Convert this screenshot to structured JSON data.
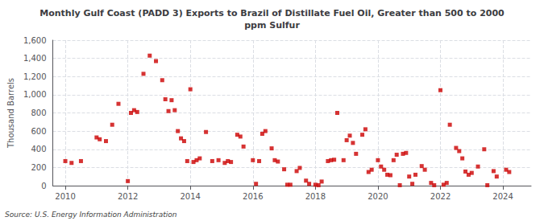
{
  "chart_data": {
    "type": "scatter",
    "title": "Monthly Gulf Coast (PADD 3) Exports to Brazil of Distillate Fuel Oil, Greater than 500 to 2000\nppm Sulfur",
    "ylabel": "Thousand Barrels",
    "annotations": [
      "Source: U.S. Energy Information Administration"
    ],
    "color": "#cc0000",
    "marker": "square",
    "grid": true,
    "xlim": [
      2009.6,
      2024.9
    ],
    "xticks": [
      2010,
      2012,
      2014,
      2016,
      2018,
      2020,
      2022,
      2024
    ],
    "ylim": [
      0,
      1600
    ],
    "yticks": [
      0,
      200,
      400,
      600,
      800,
      {
        "value": 1000,
        "label": "1,000"
      },
      {
        "value": 1200,
        "label": "1,200"
      },
      {
        "value": 1400,
        "label": "1,400"
      },
      {
        "value": 1600,
        "label": "1,600"
      }
    ],
    "x": [
      2010.0,
      2010.2,
      2010.5,
      2011.0,
      2011.1,
      2011.3,
      2011.5,
      2011.7,
      2012.0,
      2012.1,
      2012.2,
      2012.3,
      2012.5,
      2012.7,
      2012.9,
      2013.1,
      2013.2,
      2013.3,
      2013.4,
      2013.5,
      2013.6,
      2013.7,
      2013.8,
      2013.9,
      2014.0,
      2014.1,
      2014.2,
      2014.3,
      2014.5,
      2014.7,
      2014.9,
      2015.1,
      2015.2,
      2015.3,
      2015.5,
      2015.6,
      2015.7,
      2016.0,
      2016.1,
      2016.2,
      2016.3,
      2016.4,
      2016.6,
      2016.7,
      2016.8,
      2017.0,
      2017.1,
      2017.2,
      2017.4,
      2017.5,
      2017.7,
      2017.8,
      2018.0,
      2018.1,
      2018.2,
      2018.4,
      2018.5,
      2018.6,
      2018.7,
      2018.9,
      2019.0,
      2019.1,
      2019.2,
      2019.3,
      2019.5,
      2019.6,
      2019.7,
      2019.8,
      2020.0,
      2020.1,
      2020.2,
      2020.3,
      2020.4,
      2020.5,
      2020.6,
      2020.7,
      2020.8,
      2020.9,
      2021.0,
      2021.1,
      2021.2,
      2021.4,
      2021.5,
      2021.7,
      2021.8,
      2022.0,
      2022.1,
      2022.2,
      2022.3,
      2022.5,
      2022.6,
      2022.7,
      2022.8,
      2022.9,
      2023.0,
      2023.2,
      2023.4,
      2023.5,
      2023.7,
      2023.8,
      2024.1,
      2024.2
    ],
    "values": [
      270,
      250,
      270,
      530,
      510,
      490,
      670,
      900,
      50,
      800,
      830,
      810,
      1230,
      1430,
      1370,
      1160,
      950,
      820,
      940,
      830,
      600,
      520,
      490,
      270,
      1060,
      260,
      280,
      300,
      590,
      270,
      280,
      250,
      270,
      260,
      560,
      540,
      430,
      280,
      20,
      270,
      570,
      600,
      410,
      280,
      265,
      180,
      10,
      10,
      160,
      195,
      55,
      20,
      10,
      5,
      45,
      270,
      280,
      285,
      800,
      280,
      500,
      550,
      470,
      350,
      560,
      620,
      150,
      175,
      280,
      210,
      175,
      120,
      115,
      280,
      340,
      5,
      350,
      360,
      100,
      20,
      120,
      215,
      175,
      30,
      5,
      1050,
      10,
      30,
      670,
      415,
      380,
      300,
      155,
      120,
      140,
      210,
      400,
      5,
      160,
      100,
      175,
      150
    ]
  }
}
